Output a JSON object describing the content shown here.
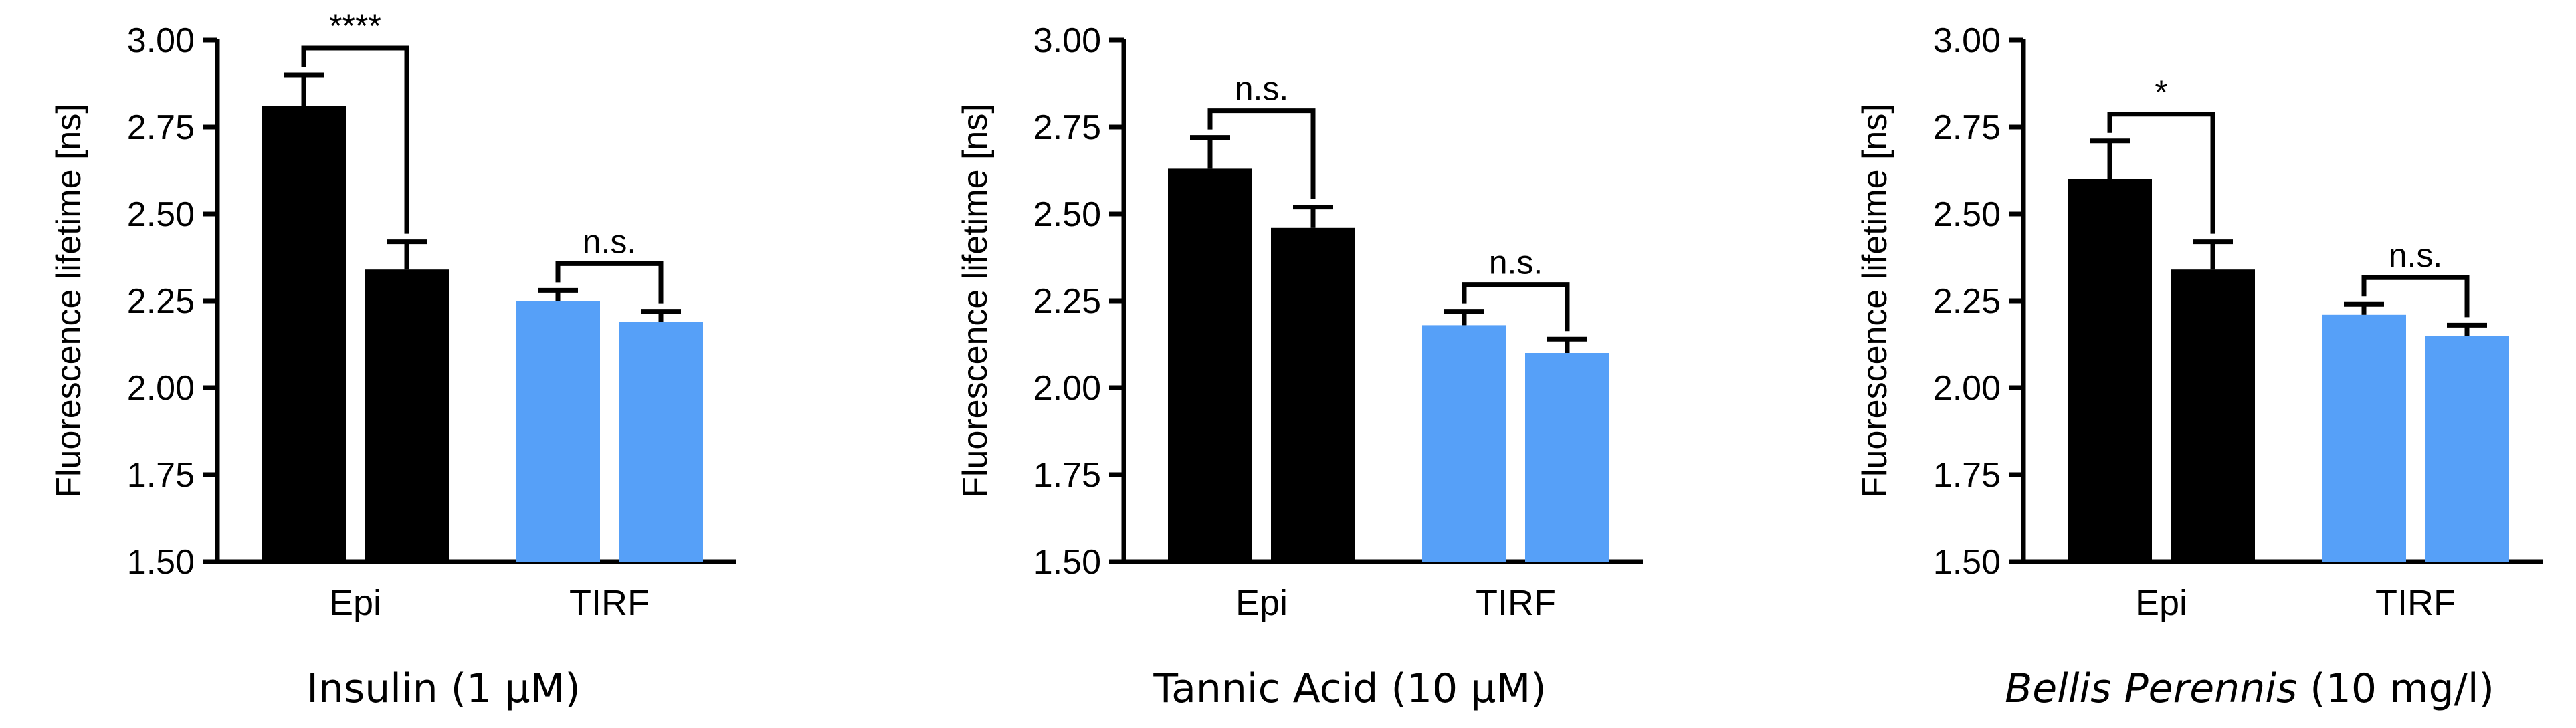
{
  "colors": {
    "epi": "#000000",
    "tirf": "#56a0f8",
    "axis": "#000000"
  },
  "chart_data": [
    {
      "type": "bar",
      "title_main": "Insulin",
      "title_suffix": " (1 µM)",
      "title_italic": false,
      "ylabel": "Fluorescence lifetime [ns]",
      "ylim": [
        1.5,
        3.0
      ],
      "yticks": [
        "1.50",
        "1.75",
        "2.00",
        "2.25",
        "2.50",
        "2.75",
        "3.00"
      ],
      "categories": [
        "Epi",
        "TIRF"
      ],
      "groups": [
        {
          "category": "Epi",
          "color": "epi",
          "bars": [
            {
              "value": 2.81,
              "err": 0.09
            },
            {
              "value": 2.34,
              "err": 0.08
            }
          ],
          "sig": "****"
        },
        {
          "category": "TIRF",
          "color": "tirf",
          "bars": [
            {
              "value": 2.25,
              "err": 0.03
            },
            {
              "value": 2.19,
              "err": 0.03
            }
          ],
          "sig": "n.s."
        }
      ]
    },
    {
      "type": "bar",
      "title_main": "Tannic Acid",
      "title_suffix": " (10 µM)",
      "title_italic": false,
      "ylabel": "Fluorescence lifetime [ns]",
      "ylim": [
        1.5,
        3.0
      ],
      "yticks": [
        "1.50",
        "1.75",
        "2.00",
        "2.25",
        "2.50",
        "2.75",
        "3.00"
      ],
      "categories": [
        "Epi",
        "TIRF"
      ],
      "groups": [
        {
          "category": "Epi",
          "color": "epi",
          "bars": [
            {
              "value": 2.63,
              "err": 0.09
            },
            {
              "value": 2.46,
              "err": 0.06
            }
          ],
          "sig": "n.s."
        },
        {
          "category": "TIRF",
          "color": "tirf",
          "bars": [
            {
              "value": 2.18,
              "err": 0.04
            },
            {
              "value": 2.1,
              "err": 0.04
            }
          ],
          "sig": "n.s."
        }
      ]
    },
    {
      "type": "bar",
      "title_main": "Bellis Perennis",
      "title_suffix": " (10 mg/l)",
      "title_italic": true,
      "ylabel": "Fluorescence lifetime [ns]",
      "ylim": [
        1.5,
        3.0
      ],
      "yticks": [
        "1.50",
        "1.75",
        "2.00",
        "2.25",
        "2.50",
        "2.75",
        "3.00"
      ],
      "categories": [
        "Epi",
        "TIRF"
      ],
      "groups": [
        {
          "category": "Epi",
          "color": "epi",
          "bars": [
            {
              "value": 2.6,
              "err": 0.11
            },
            {
              "value": 2.34,
              "err": 0.08
            }
          ],
          "sig": "*"
        },
        {
          "category": "TIRF",
          "color": "tirf",
          "bars": [
            {
              "value": 2.21,
              "err": 0.03
            },
            {
              "value": 2.15,
              "err": 0.03
            }
          ],
          "sig": "n.s."
        }
      ]
    }
  ]
}
